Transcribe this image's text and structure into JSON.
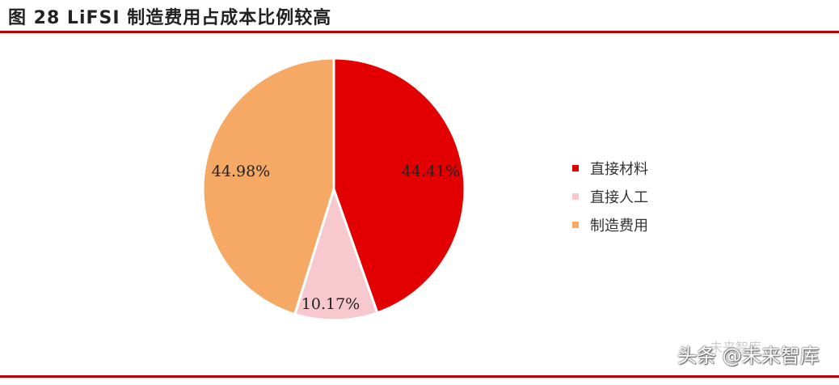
{
  "figure": {
    "title": "图  28 LiFSI 制造费用占成本比例较高"
  },
  "chart_data": {
    "type": "pie",
    "title": "图  28 LiFSI 制造费用占成本比例较高",
    "slices": [
      {
        "label": "直接材料",
        "value": 44.41,
        "display": "44.41%",
        "color": "#e20000"
      },
      {
        "label": "直接人工",
        "value": 10.17,
        "display": "10.17%",
        "color": "#f7c9cf"
      },
      {
        "label": "制造费用",
        "value": 44.98,
        "display": "44.98%",
        "color": "#f5a964"
      }
    ],
    "legend_position": "right",
    "start_angle_deg": 0,
    "direction": "clockwise"
  },
  "watermark": {
    "text": "头条 @未来智库",
    "small": "未来智库"
  },
  "colors": {
    "accent": "#c00000"
  }
}
